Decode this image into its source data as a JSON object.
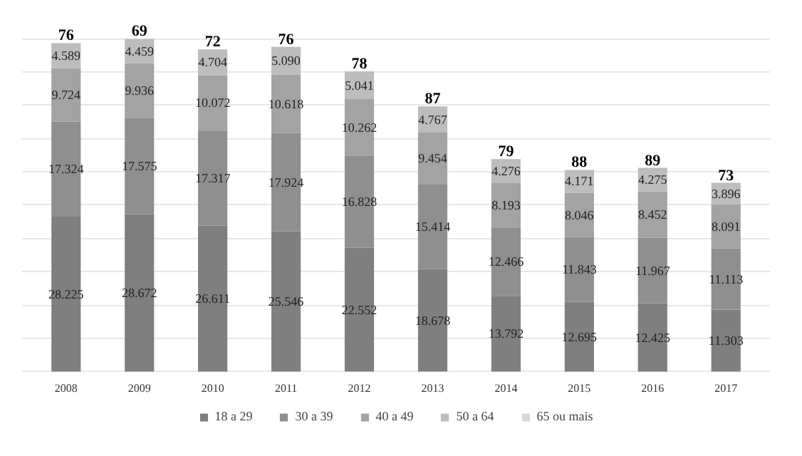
{
  "chart_data": {
    "type": "bar",
    "stacked": true,
    "data_labels": true,
    "grid": "y",
    "tick_labels": "x",
    "legend": "bottom",
    "categories": [
      "2008",
      "2009",
      "2010",
      "2011",
      "2012",
      "2013",
      "2014",
      "2015",
      "2016",
      "2017"
    ],
    "series": [
      {
        "name": "18 a 29",
        "color": "#7f7f7f",
        "values": [
          28.225,
          28.672,
          26.611,
          25.546,
          22.552,
          18.678,
          13.792,
          12.695,
          12.425,
          11.303
        ]
      },
      {
        "name": "30 a 39",
        "color": "#8f8f8f",
        "values": [
          17.324,
          17.575,
          17.317,
          17.924,
          16.828,
          15.414,
          12.466,
          11.843,
          11.967,
          11.113
        ]
      },
      {
        "name": "40 a 49",
        "color": "#a3a3a3",
        "values": [
          9.724,
          9.936,
          10.072,
          10.618,
          10.262,
          9.454,
          8.193,
          8.046,
          8.452,
          8.091
        ]
      },
      {
        "name": "50 a 64",
        "color": "#bdbdbd",
        "values": [
          4.589,
          4.459,
          4.704,
          5.09,
          5.041,
          4.767,
          4.276,
          4.171,
          4.275,
          3.896
        ],
        "value_labels": [
          "4.589",
          "4.459",
          "4.704",
          "5.090",
          "5.041",
          "4.767",
          "4.276",
          "4.171",
          "4.275",
          "3.896"
        ]
      },
      {
        "name": "65 ou mais",
        "color": "#d9d9d9",
        "values": [
          null,
          null,
          null,
          null,
          null,
          null,
          null,
          null,
          null,
          null
        ]
      }
    ],
    "annotations": [
      {
        "text": "76",
        "x": "2008"
      },
      {
        "text": "69",
        "x": "2009"
      },
      {
        "text": "72",
        "x": "2010"
      },
      {
        "text": "76",
        "x": "2011"
      },
      {
        "text": "78",
        "x": "2012"
      },
      {
        "text": "87",
        "x": "2013"
      },
      {
        "text": "79",
        "x": "2014"
      },
      {
        "text": "88",
        "x": "2015"
      },
      {
        "text": "89",
        "x": "2016"
      },
      {
        "text": "73",
        "x": "2017"
      }
    ]
  }
}
